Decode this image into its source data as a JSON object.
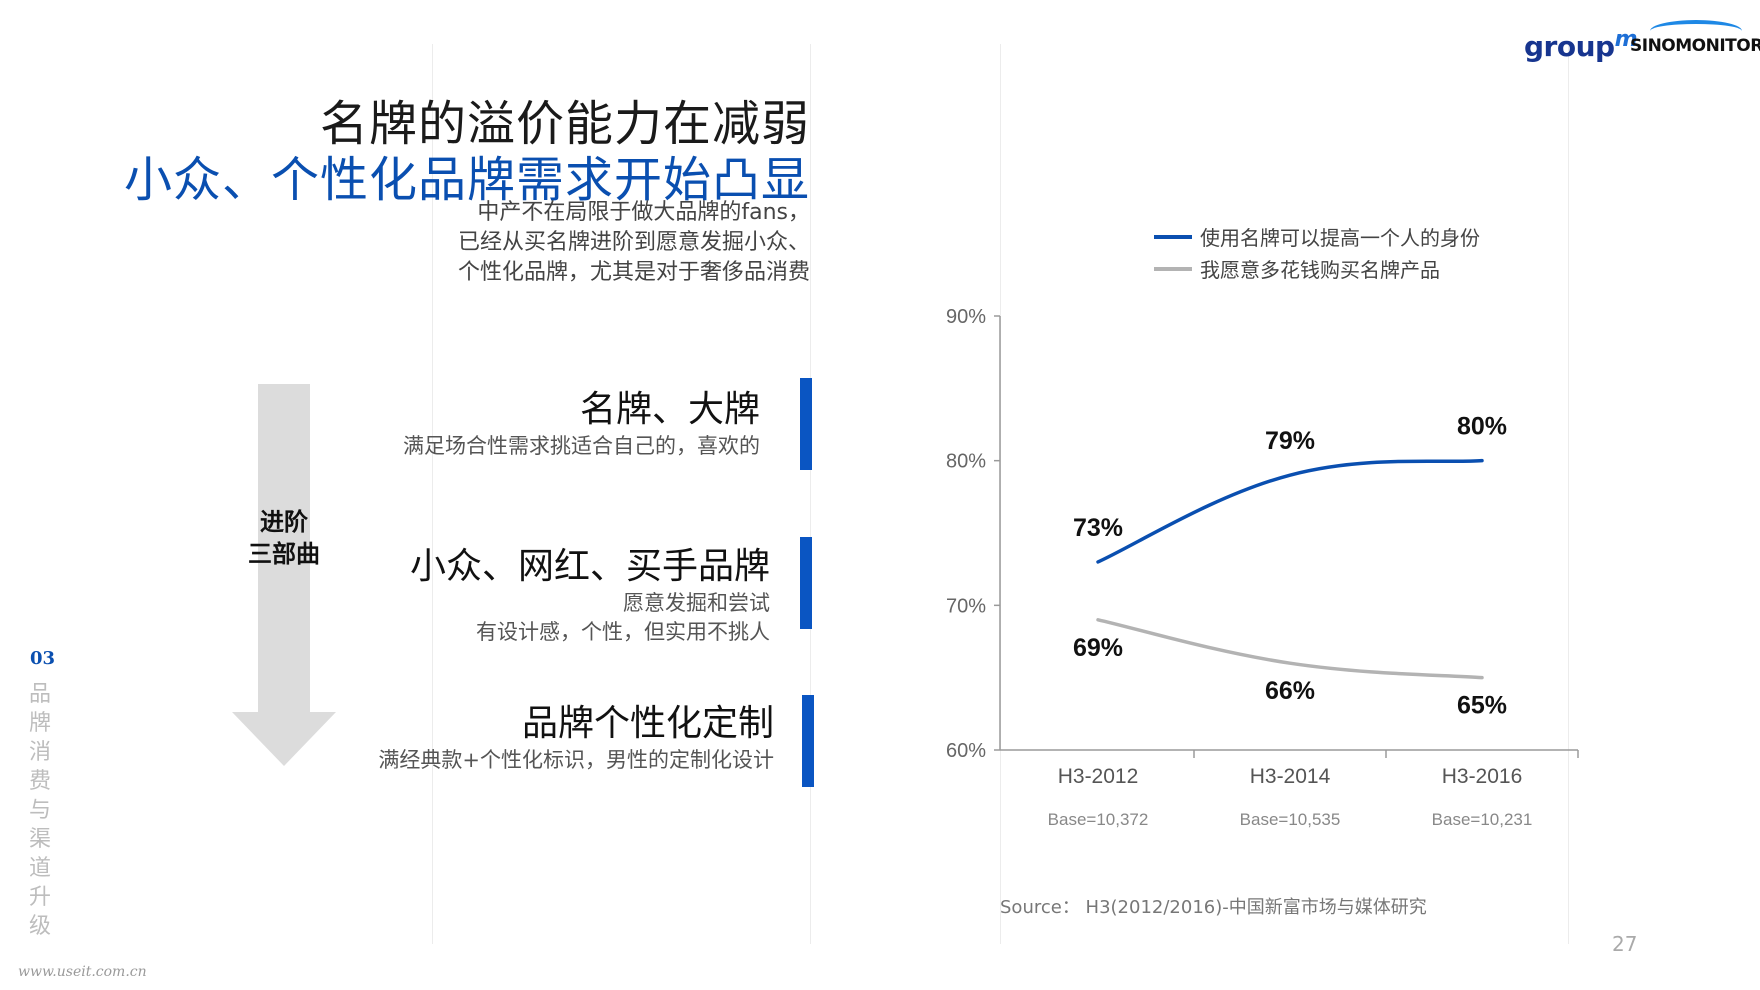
{
  "title": {
    "line1": "名牌的溢价能力在减弱",
    "line2": "小众、个性化品牌需求开始凸显"
  },
  "intro": [
    "中产不在局限于做大品牌的fans，",
    "已经从买名牌进阶到愿意发掘小众、",
    "个性化品牌，尤其是对于奢侈品消费"
  ],
  "arrow": {
    "line1": "进阶",
    "line2": "三部曲"
  },
  "stages": [
    {
      "title": "名牌、大牌",
      "desc": [
        "满足场合性需求挑适合自己的，喜欢的"
      ]
    },
    {
      "title": "小众、网红、买手品牌",
      "desc": [
        "愿意发掘和尝试",
        "有设计感，个性，但实用不挑人"
      ]
    },
    {
      "title": "品牌个性化定制",
      "desc": [
        "满经典款+个性化标识，男性的定制化设计"
      ]
    }
  ],
  "section": {
    "number": "03",
    "label": "品牌消费与渠道升级"
  },
  "watermark": "www.useit.com.cn",
  "logos": {
    "groupm": "group",
    "groupm_m": "m",
    "sinomonitor": "SINOMONITOR"
  },
  "colors": {
    "accent": "#0a4fb0",
    "series1": "#0a4fb0",
    "series2": "#b3b3b3",
    "bar": "#0a55c2",
    "arrow": "#dcdcdc"
  },
  "chart_data": {
    "type": "line",
    "categories": [
      "H3-2012",
      "H3-2014",
      "H3-2016"
    ],
    "sublabels": [
      "Base=10,372",
      "Base=10,535",
      "Base=10,231"
    ],
    "yticks": [
      "90%",
      "80%",
      "70%",
      "60%"
    ],
    "ylim": [
      60,
      90
    ],
    "series": [
      {
        "name": "使用名牌可以提高一个人的身份",
        "values": [
          73,
          79,
          80
        ],
        "labels": [
          "73%",
          "79%",
          "80%"
        ]
      },
      {
        "name": "我愿意多花钱购买名牌产品",
        "values": [
          69,
          66,
          65
        ],
        "labels": [
          "69%",
          "66%",
          "65%"
        ]
      }
    ],
    "legend": "top-right"
  },
  "source": "Source：  H3(2012/2016)-中国新富市场与媒体研究",
  "page_number": "27"
}
